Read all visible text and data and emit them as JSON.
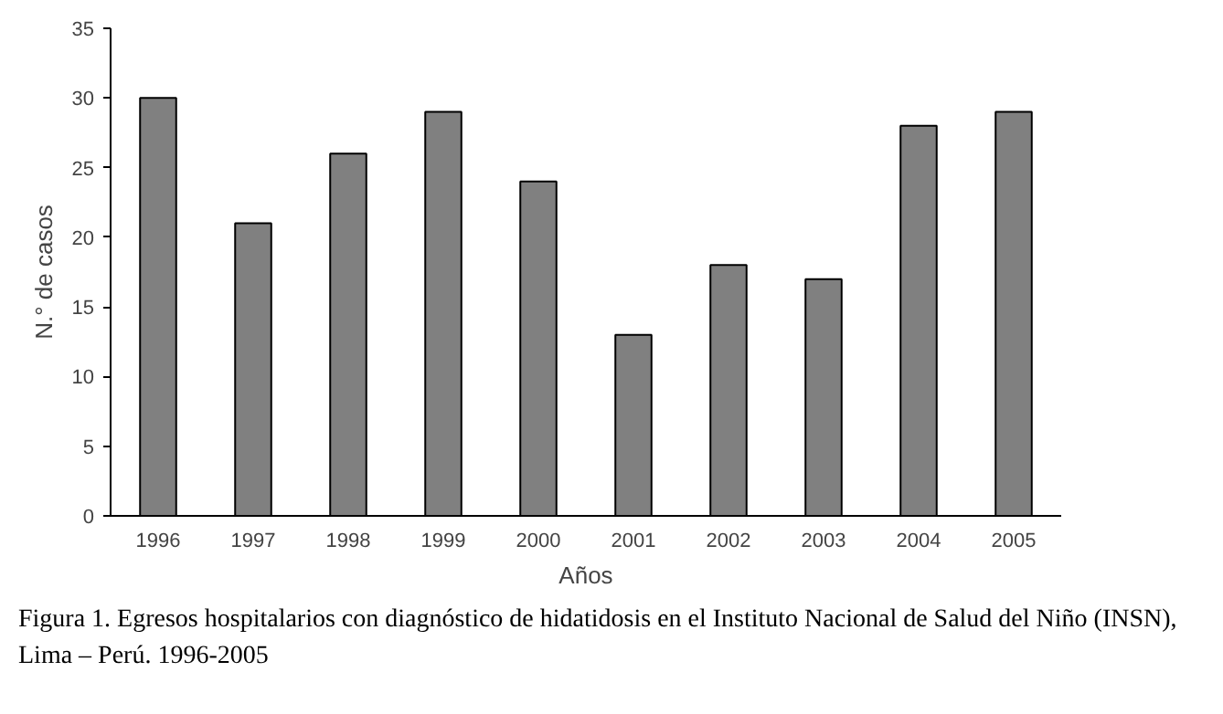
{
  "chart_data": {
    "type": "bar",
    "xlabel": "Años",
    "ylabel": "N.° de casos",
    "categories": [
      "1996",
      "1997",
      "1998",
      "1999",
      "2000",
      "2001",
      "2002",
      "2003",
      "2004",
      "2005"
    ],
    "values": [
      30,
      21,
      26,
      29,
      24,
      13,
      18,
      17,
      28,
      29
    ],
    "color": "#808080",
    "ylim": [
      0,
      35
    ],
    "yticks": [
      0,
      5,
      10,
      15,
      20,
      25,
      30,
      35
    ],
    "grid": false,
    "legend": false,
    "annotations": [
      "Figura 1.   Egresos hospitalarios con diagnóstico de hidatidosis en el Instituto Nacional de Salud del Niño (INSN), Lima – Perú. 1996-2005"
    ]
  }
}
